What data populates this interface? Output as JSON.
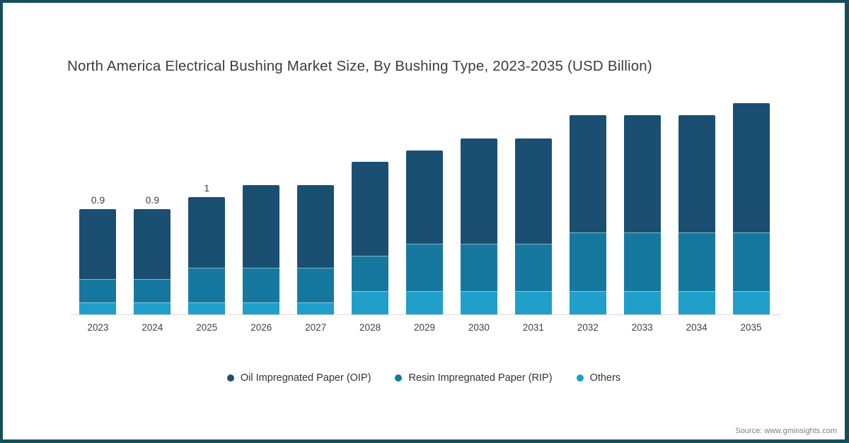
{
  "title": "North America Electrical Bushing Market Size, By Bushing Type, 2023-2035 (USD Billion)",
  "source": "Source: www.gminsights.com",
  "frame_border_color": "#164e59",
  "axis_line_color": "#d9d9d9",
  "chart_data": {
    "type": "bar",
    "stacked": true,
    "title": "North America Electrical Bushing Market Size, By Bushing Type, 2023-2035 (USD Billion)",
    "unit": "USD Billion",
    "categories": [
      "2023",
      "2024",
      "2025",
      "2026",
      "2027",
      "2028",
      "2029",
      "2030",
      "2031",
      "2032",
      "2033",
      "2034",
      "2035"
    ],
    "series": [
      {
        "name": "Oil Impregnated Paper (OIP)",
        "color": "#1a4f71",
        "values": [
          0.6,
          0.6,
          0.6,
          0.7,
          0.7,
          0.8,
          0.8,
          0.9,
          0.9,
          1.0,
          1.0,
          1.0,
          1.1
        ]
      },
      {
        "name": "Resin Impregnated Paper (RIP)",
        "color": "#16789e",
        "values": [
          0.2,
          0.2,
          0.3,
          0.3,
          0.3,
          0.3,
          0.4,
          0.4,
          0.4,
          0.5,
          0.5,
          0.5,
          0.5
        ]
      },
      {
        "name": "Others",
        "color": "#1f9fca",
        "values": [
          0.1,
          0.1,
          0.1,
          0.1,
          0.1,
          0.2,
          0.2,
          0.2,
          0.2,
          0.2,
          0.2,
          0.2,
          0.2
        ]
      }
    ],
    "totals": [
      0.9,
      0.9,
      1.0,
      1.1,
      1.1,
      1.3,
      1.4,
      1.5,
      1.5,
      1.7,
      1.7,
      1.7,
      1.8
    ],
    "bar_labels": [
      "0.9",
      "0.9",
      "1",
      "",
      "",
      "",
      "",
      "",
      "",
      "",
      "",
      "",
      ""
    ],
    "ylim": [
      0,
      1.85
    ],
    "grid": false,
    "legend_position": "bottom"
  },
  "legend": {
    "items": [
      {
        "label": "Oil Impregnated Paper (OIP)",
        "color": "#1a4f71"
      },
      {
        "label": "Resin Impregnated Paper (RIP)",
        "color": "#16789e"
      },
      {
        "label": "Others",
        "color": "#1f9fca"
      }
    ]
  }
}
